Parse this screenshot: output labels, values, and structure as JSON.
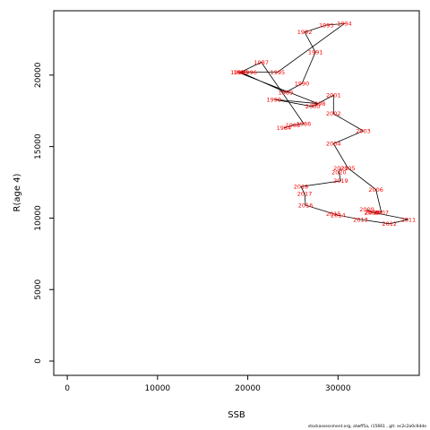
{
  "footer": "stockassessment.org, atwff5a, r15661 , git: ec2c2a0c6dde",
  "chart_data": {
    "type": "line",
    "xlabel": "SSB",
    "ylabel": "R(age 4)",
    "xlim": [
      -1500,
      39000
    ],
    "ylim": [
      -1000,
      24500
    ],
    "xticks": [
      0,
      10000,
      20000,
      30000
    ],
    "yticks": [
      0,
      5000,
      10000,
      15000,
      20000
    ],
    "line_color": "#000000",
    "label_color": "#ff0000",
    "points": [
      {
        "label": "1984",
        "x": 24000,
        "y": 16300
      },
      {
        "label": "1985",
        "x": 25000,
        "y": 16500
      },
      {
        "label": "1986",
        "x": 26200,
        "y": 16600
      },
      {
        "label": "1987",
        "x": 21500,
        "y": 20900
      },
      {
        "label": "1988",
        "x": 19200,
        "y": 20200
      },
      {
        "label": "1989",
        "x": 24200,
        "y": 18800
      },
      {
        "label": "1990",
        "x": 26000,
        "y": 19400
      },
      {
        "label": "1991",
        "x": 27500,
        "y": 21600
      },
      {
        "label": "1992",
        "x": 26300,
        "y": 23000
      },
      {
        "label": "1993",
        "x": 28700,
        "y": 23500
      },
      {
        "label": "1994",
        "x": 30700,
        "y": 23600
      },
      {
        "label": "1995",
        "x": 23300,
        "y": 20200
      },
      {
        "label": "1996",
        "x": 20200,
        "y": 20200
      },
      {
        "label": "1997",
        "x": 18900,
        "y": 20200
      },
      {
        "label": "1998",
        "x": 27800,
        "y": 18000
      },
      {
        "label": "1999",
        "x": 22900,
        "y": 18300
      },
      {
        "label": "2000",
        "x": 27200,
        "y": 17800
      },
      {
        "label": "2001",
        "x": 29500,
        "y": 18600
      },
      {
        "label": "2002",
        "x": 29500,
        "y": 17300
      },
      {
        "label": "2003",
        "x": 32800,
        "y": 16100
      },
      {
        "label": "2004",
        "x": 29500,
        "y": 15200
      },
      {
        "label": "2005",
        "x": 31100,
        "y": 13500
      },
      {
        "label": "2006",
        "x": 34200,
        "y": 12000
      },
      {
        "label": "2007",
        "x": 34800,
        "y": 10400
      },
      {
        "label": "2008",
        "x": 33700,
        "y": 10400
      },
      {
        "label": "2009",
        "x": 33200,
        "y": 10600
      },
      {
        "label": "2010",
        "x": 33800,
        "y": 10400
      },
      {
        "label": "2011",
        "x": 37800,
        "y": 9900
      },
      {
        "label": "2012",
        "x": 35700,
        "y": 9600
      },
      {
        "label": "2013",
        "x": 32500,
        "y": 9900
      },
      {
        "label": "2014",
        "x": 30000,
        "y": 10200
      },
      {
        "label": "2015",
        "x": 29500,
        "y": 10300
      },
      {
        "label": "2016",
        "x": 26400,
        "y": 10900
      },
      {
        "label": "2017",
        "x": 26300,
        "y": 11700
      },
      {
        "label": "2018",
        "x": 25900,
        "y": 12200
      },
      {
        "label": "2019",
        "x": 30300,
        "y": 12600
      },
      {
        "label": "2020",
        "x": 30100,
        "y": 13200
      },
      {
        "label": "2021",
        "x": 30300,
        "y": 13500
      }
    ]
  }
}
